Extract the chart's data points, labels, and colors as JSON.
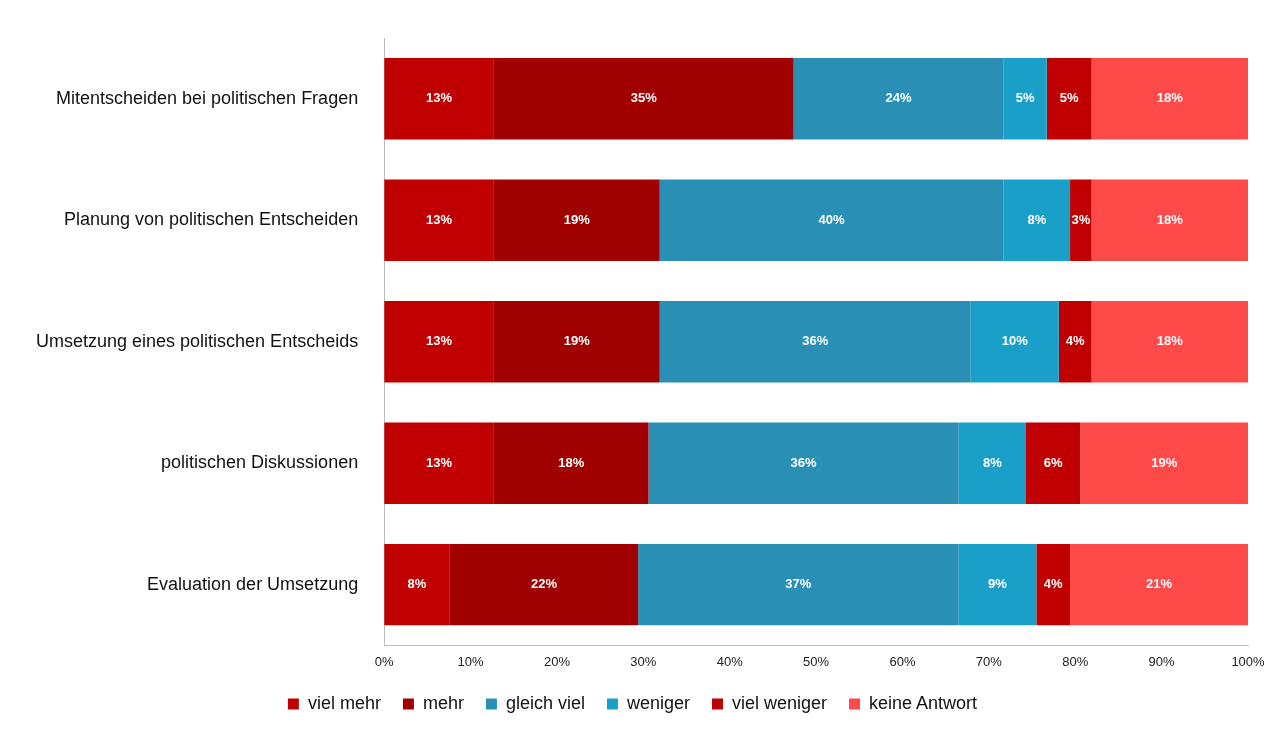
{
  "chart_data": {
    "type": "bar",
    "orientation": "horizontal",
    "stacked": true,
    "categories": [
      "Mitentscheiden bei politischen Fragen",
      "Planung von politischen Entscheiden",
      "Umsetzung eines politischen Entscheids",
      "politischen Diskussionen",
      "Evaluation der Umsetzung"
    ],
    "series": [
      {
        "name": "viel mehr",
        "color": "#c00000",
        "values": [
          12.7,
          12.7,
          12.7,
          12.7,
          7.6
        ],
        "value_labels": [
          "13%",
          "13%",
          "13%",
          "13%",
          "8%"
        ]
      },
      {
        "name": "mehr",
        "color": "#a00000",
        "values": [
          34.7,
          19.2,
          19.2,
          17.9,
          21.8
        ],
        "value_labels": [
          "35%",
          "19%",
          "19%",
          "18%",
          "22%"
        ]
      },
      {
        "name": "gleich viel",
        "color": "#2a8fb4",
        "values": [
          24.3,
          39.8,
          36.0,
          35.9,
          37.1
        ],
        "value_labels": [
          "24%",
          "40%",
          "36%",
          "36%",
          "37%"
        ]
      },
      {
        "name": "weniger",
        "color": "#1aa0c8",
        "values": [
          5.0,
          7.7,
          10.2,
          7.8,
          9.0
        ],
        "value_labels": [
          "5%",
          "8%",
          "10%",
          "8%",
          "9%"
        ]
      },
      {
        "name": "viel weniger",
        "color": "#c00000",
        "values": [
          5.2,
          2.5,
          3.8,
          6.3,
          3.9
        ],
        "value_labels": [
          "5%",
          "3%",
          "4%",
          "6%",
          "4%"
        ]
      },
      {
        "name": "keine Antwort",
        "color": "#ff4a4a",
        "values": [
          18.1,
          18.1,
          18.1,
          19.4,
          20.6
        ],
        "value_labels": [
          "18%",
          "18%",
          "18%",
          "19%",
          "21%"
        ]
      }
    ],
    "xlim": [
      0,
      100
    ],
    "xticks": [
      {
        "value": 0,
        "label": "0%"
      },
      {
        "value": 10,
        "label": "10%"
      },
      {
        "value": 20,
        "label": "20%"
      },
      {
        "value": 30,
        "label": "30%"
      },
      {
        "value": 40,
        "label": "40%"
      },
      {
        "value": 50,
        "label": "50%"
      },
      {
        "value": 60,
        "label": "60%"
      },
      {
        "value": 70,
        "label": "70%"
      },
      {
        "value": 80,
        "label": "80%"
      },
      {
        "value": 90,
        "label": "90%"
      },
      {
        "value": 100,
        "label": "100%"
      }
    ],
    "grid": false,
    "legend": "bottom"
  }
}
